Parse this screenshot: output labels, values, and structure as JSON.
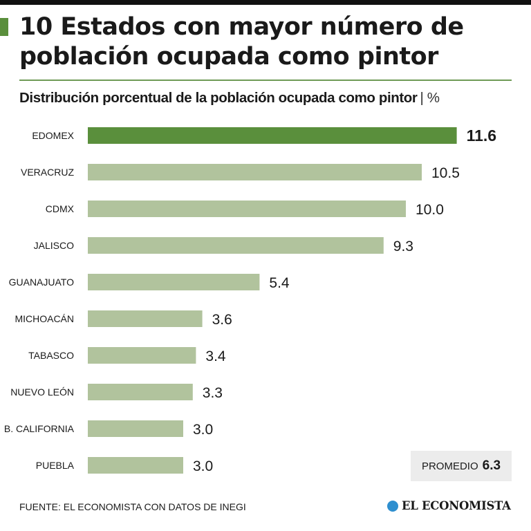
{
  "header": {
    "title": "10 Estados con mayor número de población ocupada como pintor"
  },
  "chart_data": {
    "type": "bar",
    "orientation": "horizontal",
    "title": "10 Estados con mayor número de población ocupada como pintor",
    "subtitle": "Distribución porcentual de la población ocupada como pintor",
    "unit": "| %",
    "categories": [
      "EDOMEX",
      "VERACRUZ",
      "CDMX",
      "JALISCO",
      "GUANAJUATO",
      "MICHOACÁN",
      "TABASCO",
      "NUEVO LEÓN",
      "B. CALIFORNIA",
      "PUEBLA"
    ],
    "values": [
      11.6,
      10.5,
      10.0,
      9.3,
      5.4,
      3.6,
      3.4,
      3.3,
      3.0,
      3.0
    ],
    "value_labels": [
      "11.6",
      "10.5",
      "10.0",
      "9.3",
      "5.4",
      "3.6",
      "3.4",
      "3.3",
      "3.0",
      "3.0"
    ],
    "highlight_index": 0,
    "xlim": [
      0,
      12
    ],
    "grid": false,
    "legend": "none",
    "average": {
      "label": "PROMEDIO",
      "value": "6.3"
    }
  },
  "footer": {
    "source": "FUENTE: EL ECONOMISTA CON DATOS DE INEGI",
    "brand": "EL ECONOMISTA",
    "brand_icon": "el-economista-logo-icon"
  },
  "colors": {
    "accent": "#5a8f3c",
    "highlight_bar": "#5a8f3c",
    "bar": "#b1c39d",
    "rule": "#6f9a56",
    "brand_icon": "#2e8fcf",
    "text": "#1a1a1a"
  }
}
